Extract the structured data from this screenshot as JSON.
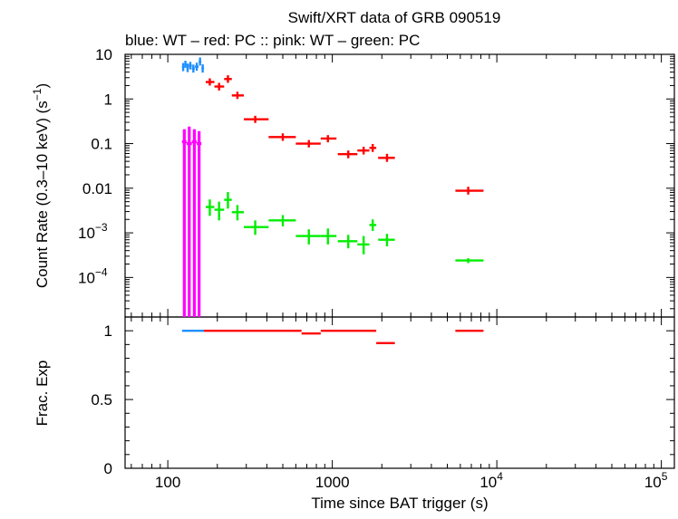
{
  "title": "Swift/XRT data of GRB 090519",
  "subtitle": {
    "part1": "blue: WT",
    "part2": " – red: PC",
    "part3": " :: pink: WT",
    "part4": " – green: PC"
  },
  "colors": {
    "blue": "#1f8fff",
    "red": "#ff0000",
    "pink": "#ff00ff",
    "green": "#00ee00",
    "axis": "#000000"
  },
  "chart_data": [
    {
      "type": "scatter",
      "title": "Swift/XRT data of GRB 090519",
      "xlabel": "Time since BAT trigger (s)",
      "ylabel": "Count Rate (0.3–10 keV) (s",
      "ylabel_sup": "−1",
      "ylabel_tail": ")",
      "xscale": "log",
      "yscale": "log",
      "xlim": [
        55,
        120000
      ],
      "ylim": [
        1.3e-05,
        10
      ],
      "x_ticks": [
        {
          "v": 100,
          "label": "100"
        },
        {
          "v": 1000,
          "label": "1000"
        },
        {
          "v": 10000,
          "base": "10",
          "exp": "4"
        },
        {
          "v": 100000,
          "base": "10",
          "exp": "5"
        }
      ],
      "y_ticks": [
        {
          "v": 10,
          "label": "10"
        },
        {
          "v": 1,
          "label": "1"
        },
        {
          "v": 0.1,
          "label": "0.1"
        },
        {
          "v": 0.01,
          "label": "0.01"
        },
        {
          "v": 0.001,
          "base": "10",
          "exp": "−3"
        },
        {
          "v": 0.0001,
          "base": "10",
          "exp": "−4"
        }
      ],
      "series": [
        {
          "name": "blue: WT",
          "color": "#1f8fff",
          "points": [
            {
              "x": 124,
              "y": 5.2,
              "xlo": 122,
              "xhi": 126,
              "ylo": 4.2,
              "yhi": 6.4
            },
            {
              "x": 128,
              "y": 6.0,
              "xlo": 126,
              "xhi": 130,
              "ylo": 5.0,
              "yhi": 7.2
            },
            {
              "x": 132,
              "y": 5.0,
              "xlo": 130,
              "xhi": 134,
              "ylo": 4.0,
              "yhi": 6.2
            },
            {
              "x": 137,
              "y": 5.6,
              "xlo": 134,
              "xhi": 140,
              "ylo": 4.6,
              "yhi": 6.8
            },
            {
              "x": 143,
              "y": 4.8,
              "xlo": 140,
              "xhi": 146,
              "ylo": 3.9,
              "yhi": 5.9
            },
            {
              "x": 150,
              "y": 5.3,
              "xlo": 146,
              "xhi": 154,
              "ylo": 4.3,
              "yhi": 6.5
            },
            {
              "x": 157,
              "y": 6.8,
              "xlo": 154,
              "xhi": 160,
              "ylo": 5.6,
              "yhi": 8.5
            },
            {
              "x": 163,
              "y": 4.9,
              "xlo": 160,
              "xhi": 166,
              "ylo": 3.9,
              "yhi": 6.0
            }
          ]
        },
        {
          "name": "red: PC",
          "color": "#ff0000",
          "points": [
            {
              "x": 180,
              "y": 2.4,
              "xlo": 170,
              "xhi": 192,
              "ylo": 2.0,
              "yhi": 2.9
            },
            {
              "x": 205,
              "y": 1.9,
              "xlo": 192,
              "xhi": 220,
              "ylo": 1.55,
              "yhi": 2.3
            },
            {
              "x": 232,
              "y": 2.8,
              "xlo": 220,
              "xhi": 245,
              "ylo": 2.3,
              "yhi": 3.4
            },
            {
              "x": 265,
              "y": 1.2,
              "xlo": 245,
              "xhi": 290,
              "ylo": 1.0,
              "yhi": 1.45
            },
            {
              "x": 340,
              "y": 0.35,
              "xlo": 290,
              "xhi": 410,
              "ylo": 0.29,
              "yhi": 0.42
            },
            {
              "x": 500,
              "y": 0.14,
              "xlo": 410,
              "xhi": 600,
              "ylo": 0.115,
              "yhi": 0.17
            },
            {
              "x": 720,
              "y": 0.1,
              "xlo": 600,
              "xhi": 850,
              "ylo": 0.082,
              "yhi": 0.12
            },
            {
              "x": 940,
              "y": 0.13,
              "xlo": 850,
              "xhi": 1060,
              "ylo": 0.107,
              "yhi": 0.155
            },
            {
              "x": 1250,
              "y": 0.058,
              "xlo": 1080,
              "xhi": 1420,
              "ylo": 0.047,
              "yhi": 0.07
            },
            {
              "x": 1550,
              "y": 0.07,
              "xlo": 1420,
              "xhi": 1680,
              "ylo": 0.057,
              "yhi": 0.085
            },
            {
              "x": 1760,
              "y": 0.08,
              "xlo": 1680,
              "xhi": 1850,
              "ylo": 0.065,
              "yhi": 0.098
            },
            {
              "x": 2150,
              "y": 0.048,
              "xlo": 1900,
              "xhi": 2400,
              "ylo": 0.039,
              "yhi": 0.059
            },
            {
              "x": 6700,
              "y": 0.0088,
              "xlo": 5600,
              "xhi": 8300,
              "ylo": 0.0072,
              "yhi": 0.0108
            }
          ]
        },
        {
          "name": "pink: WT",
          "color": "#ff00ff",
          "points": [
            {
              "x": 126,
              "y": 0.11,
              "xlo": 122,
              "xhi": 130,
              "ylo": 1.3e-05,
              "yhi": 0.21
            },
            {
              "x": 135,
              "y": 0.1,
              "xlo": 130,
              "xhi": 140,
              "ylo": 1.3e-05,
              "yhi": 0.24
            },
            {
              "x": 145,
              "y": 0.11,
              "xlo": 140,
              "xhi": 150,
              "ylo": 1.3e-05,
              "yhi": 0.21
            },
            {
              "x": 155,
              "y": 0.1,
              "xlo": 150,
              "xhi": 160,
              "ylo": 1.3e-05,
              "yhi": 0.19
            }
          ]
        },
        {
          "name": "green: PC",
          "color": "#00ee00",
          "points": [
            {
              "x": 180,
              "y": 0.0038,
              "xlo": 170,
              "xhi": 192,
              "ylo": 0.0024,
              "yhi": 0.0056
            },
            {
              "x": 205,
              "y": 0.0033,
              "xlo": 192,
              "xhi": 220,
              "ylo": 0.0019,
              "yhi": 0.005
            },
            {
              "x": 232,
              "y": 0.0055,
              "xlo": 220,
              "xhi": 245,
              "ylo": 0.0035,
              "yhi": 0.0082
            },
            {
              "x": 265,
              "y": 0.0029,
              "xlo": 245,
              "xhi": 290,
              "ylo": 0.0019,
              "yhi": 0.0042
            },
            {
              "x": 340,
              "y": 0.00135,
              "xlo": 290,
              "xhi": 410,
              "ylo": 0.0009,
              "yhi": 0.0019
            },
            {
              "x": 500,
              "y": 0.0019,
              "xlo": 410,
              "xhi": 600,
              "ylo": 0.0014,
              "yhi": 0.0025
            },
            {
              "x": 720,
              "y": 0.00085,
              "xlo": 600,
              "xhi": 850,
              "ylo": 0.00055,
              "yhi": 0.0012
            },
            {
              "x": 940,
              "y": 0.00085,
              "xlo": 850,
              "xhi": 1060,
              "ylo": 0.00055,
              "yhi": 0.00125
            },
            {
              "x": 1250,
              "y": 0.00065,
              "xlo": 1080,
              "xhi": 1420,
              "ylo": 0.00045,
              "yhi": 0.0009
            },
            {
              "x": 1550,
              "y": 0.00055,
              "xlo": 1420,
              "xhi": 1680,
              "ylo": 0.00033,
              "yhi": 0.00085
            },
            {
              "x": 1760,
              "y": 0.0015,
              "xlo": 1680,
              "xhi": 1850,
              "ylo": 0.0011,
              "yhi": 0.002
            },
            {
              "x": 2150,
              "y": 0.0007,
              "xlo": 1900,
              "xhi": 2400,
              "ylo": 0.0005,
              "yhi": 0.00095
            },
            {
              "x": 6700,
              "y": 0.00024,
              "xlo": 5600,
              "xhi": 8300,
              "ylo": 0.00021,
              "yhi": 0.00027
            }
          ]
        }
      ]
    },
    {
      "type": "line",
      "xlabel": "Time since BAT trigger (s)",
      "ylabel": "Frac. Exp",
      "xscale": "log",
      "yscale": "linear",
      "xlim": [
        55,
        120000
      ],
      "ylim": [
        0,
        1.1
      ],
      "y_ticks": [
        {
          "v": 1,
          "label": "1"
        },
        {
          "v": 0.5,
          "label": "0.5"
        },
        {
          "v": 0,
          "label": "0"
        }
      ],
      "segments": [
        {
          "series": "blue: WT",
          "color": "#1f8fff",
          "x0": 122,
          "x1": 166,
          "y": 1.0
        },
        {
          "series": "red: PC",
          "color": "#ff0000",
          "x0": 166,
          "x1": 650,
          "y": 1.0
        },
        {
          "series": "red: PC",
          "color": "#ff0000",
          "x0": 650,
          "x1": 850,
          "y": 0.98
        },
        {
          "series": "red: PC",
          "color": "#ff0000",
          "x0": 850,
          "x1": 1850,
          "y": 1.0
        },
        {
          "series": "red: PC",
          "color": "#ff0000",
          "x0": 1850,
          "x1": 2400,
          "y": 0.91
        },
        {
          "series": "red: PC",
          "color": "#ff0000",
          "x0": 5600,
          "x1": 8300,
          "y": 1.0
        }
      ]
    }
  ]
}
